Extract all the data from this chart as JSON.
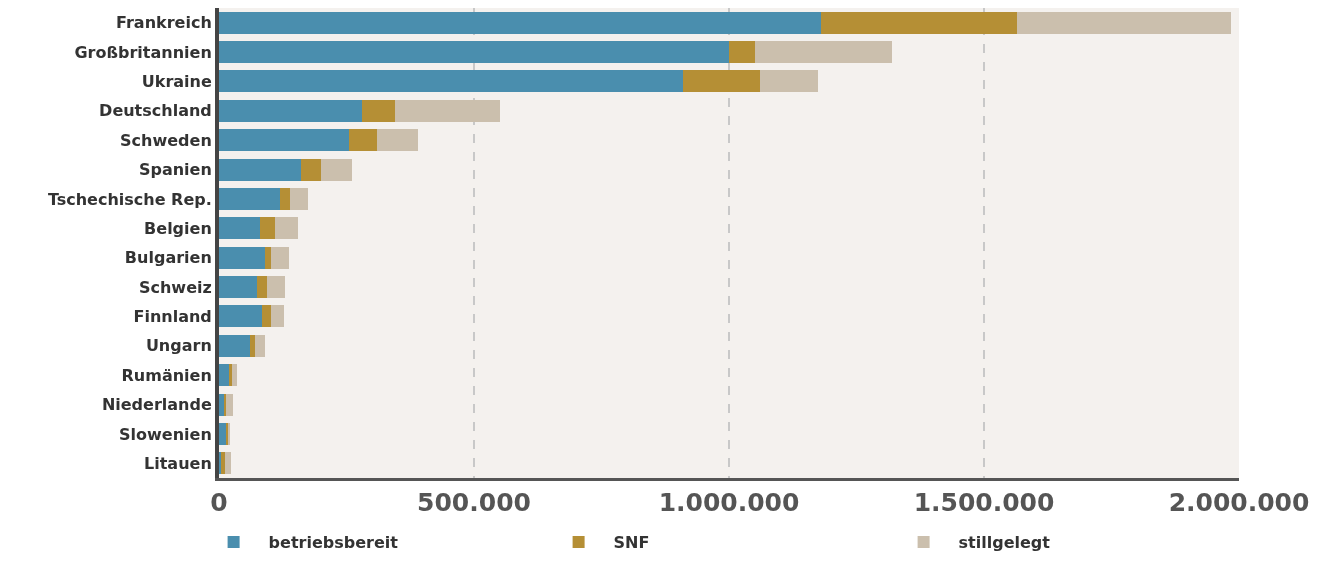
{
  "chart_data": {
    "type": "bar",
    "orientation": "horizontal",
    "stacked": true,
    "categories": [
      "Frankreich",
      "Großbritannien",
      "Ukraine",
      "Deutschland",
      "Schweden",
      "Spanien",
      "Tschechische Rep.",
      "Belgien",
      "Bulgarien",
      "Schweiz",
      "Finnland",
      "Ungarn",
      "Rumänien",
      "Niederlande",
      "Slowenien",
      "Litauen"
    ],
    "series": [
      {
        "name": "betriebsbereit",
        "color": "#4a8eae",
        "values": [
          1180000,
          1000000,
          910000,
          280000,
          255000,
          160000,
          120000,
          80000,
          90000,
          75000,
          85000,
          60000,
          20000,
          10000,
          15000,
          4000
        ]
      },
      {
        "name": "SNF",
        "color": "#b58f35",
        "values": [
          385000,
          50000,
          150000,
          65000,
          55000,
          40000,
          20000,
          30000,
          12000,
          20000,
          17000,
          10000,
          5000,
          4000,
          3000,
          8000
        ]
      },
      {
        "name": "stillgelegt",
        "color": "#cbbfad",
        "values": [
          420000,
          270000,
          115000,
          205000,
          80000,
          60000,
          35000,
          45000,
          35000,
          35000,
          25000,
          20000,
          10000,
          14000,
          4000,
          12000
        ]
      }
    ],
    "xlim": [
      0,
      2000000
    ],
    "xticks": [
      {
        "value": 0,
        "label": "0"
      },
      {
        "value": 500000,
        "label": "500.000"
      },
      {
        "value": 1000000,
        "label": "1.000.000"
      },
      {
        "value": 1500000,
        "label": "1.500.000"
      },
      {
        "value": 2000000,
        "label": "2.000.000"
      }
    ],
    "grid": "x",
    "legend": "bottom"
  }
}
